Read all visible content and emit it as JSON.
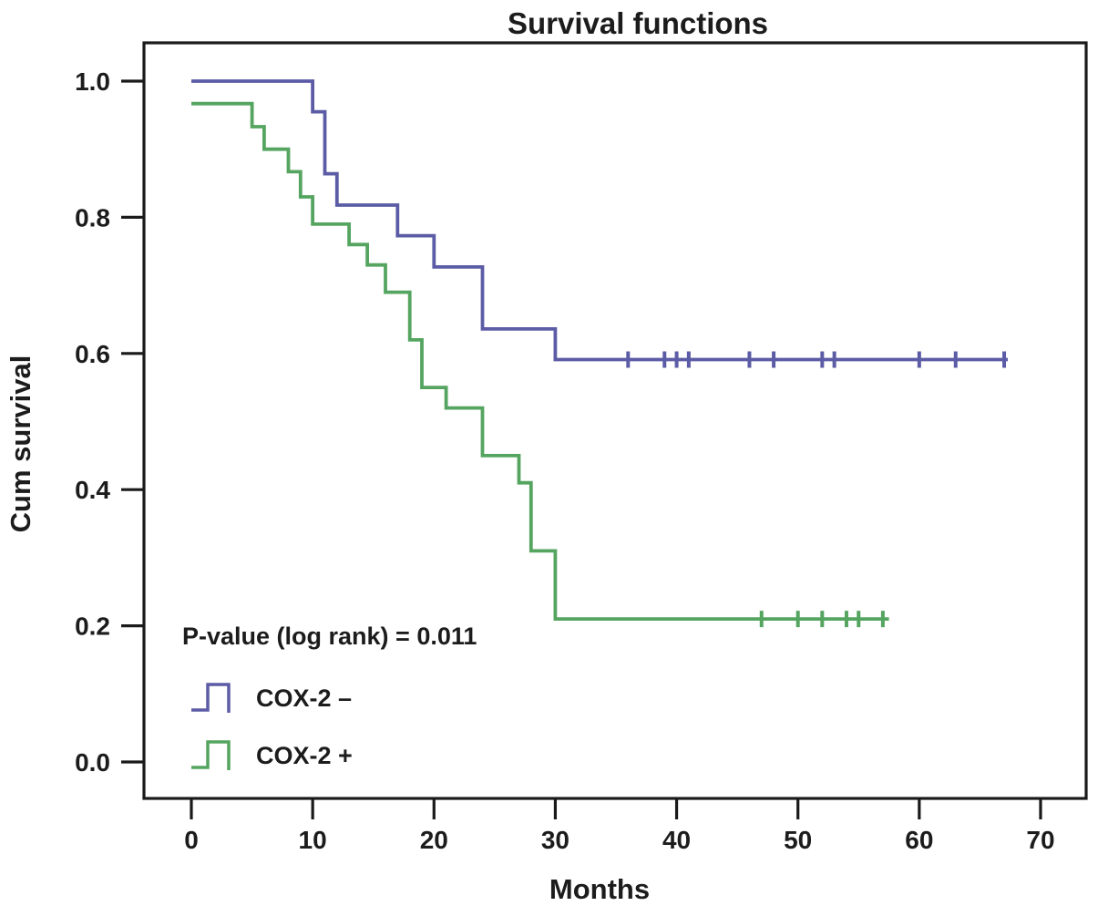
{
  "chart_data": {
    "type": "line",
    "subtype": "kaplan-meier-step",
    "title": "Survival functions",
    "xlabel": "Months",
    "ylabel": "Cum survival",
    "xlim": [
      0,
      70
    ],
    "ylim": [
      0.0,
      1.0
    ],
    "grid": false,
    "axis_color": "#1a1a1a",
    "x_ticks": [
      0,
      10,
      20,
      30,
      40,
      50,
      60,
      70
    ],
    "x_tick_labels": [
      "0",
      "10",
      "20",
      "30",
      "40",
      "50",
      "60",
      "70"
    ],
    "y_ticks": [
      1.0,
      0.8,
      0.6,
      0.4,
      0.2,
      0.0
    ],
    "y_tick_labels": [
      "1.0",
      "0.8",
      "0.6",
      "0.4",
      "0.2",
      "0.0"
    ],
    "annotation": "P-value (log rank) = 0.011",
    "legend_position": "inside-lower-left",
    "series": [
      {
        "id": "cox2-negative",
        "name": "COX-2  –",
        "color": "#5c5ca6",
        "points": [
          [
            0,
            1.0
          ],
          [
            10,
            1.0
          ],
          [
            10,
            0.955
          ],
          [
            11,
            0.955
          ],
          [
            11,
            0.864
          ],
          [
            12,
            0.864
          ],
          [
            12,
            0.818
          ],
          [
            17,
            0.818
          ],
          [
            17,
            0.773
          ],
          [
            20,
            0.773
          ],
          [
            20,
            0.727
          ],
          [
            24,
            0.727
          ],
          [
            24,
            0.636
          ],
          [
            30,
            0.636
          ],
          [
            30,
            0.591
          ],
          [
            67.3,
            0.591
          ]
        ],
        "censor_marks": [
          [
            36,
            0.591
          ],
          [
            39,
            0.591
          ],
          [
            40,
            0.591
          ],
          [
            41,
            0.591
          ],
          [
            46,
            0.591
          ],
          [
            48,
            0.591
          ],
          [
            52,
            0.591
          ],
          [
            53,
            0.591
          ],
          [
            60,
            0.591
          ],
          [
            63,
            0.591
          ],
          [
            67,
            0.591
          ]
        ]
      },
      {
        "id": "cox2-positive",
        "name": "COX-2  +",
        "color": "#55a561",
        "points": [
          [
            0,
            0.967
          ],
          [
            5,
            0.967
          ],
          [
            5,
            0.933
          ],
          [
            6,
            0.933
          ],
          [
            6,
            0.9
          ],
          [
            8,
            0.9
          ],
          [
            8,
            0.867
          ],
          [
            9,
            0.867
          ],
          [
            9,
            0.83
          ],
          [
            10,
            0.83
          ],
          [
            10,
            0.79
          ],
          [
            13,
            0.79
          ],
          [
            13,
            0.76
          ],
          [
            14.5,
            0.76
          ],
          [
            14.5,
            0.73
          ],
          [
            16,
            0.73
          ],
          [
            16,
            0.69
          ],
          [
            18,
            0.69
          ],
          [
            18,
            0.62
          ],
          [
            19,
            0.62
          ],
          [
            19,
            0.55
          ],
          [
            21,
            0.55
          ],
          [
            21,
            0.52
          ],
          [
            24,
            0.52
          ],
          [
            24,
            0.45
          ],
          [
            27,
            0.45
          ],
          [
            27,
            0.41
          ],
          [
            28,
            0.41
          ],
          [
            28,
            0.31
          ],
          [
            30,
            0.31
          ],
          [
            30,
            0.21
          ],
          [
            57.5,
            0.21
          ]
        ],
        "censor_marks": [
          [
            47,
            0.21
          ],
          [
            50,
            0.21
          ],
          [
            52,
            0.21
          ],
          [
            54,
            0.21
          ],
          [
            55,
            0.21
          ],
          [
            57,
            0.21
          ]
        ]
      }
    ]
  }
}
